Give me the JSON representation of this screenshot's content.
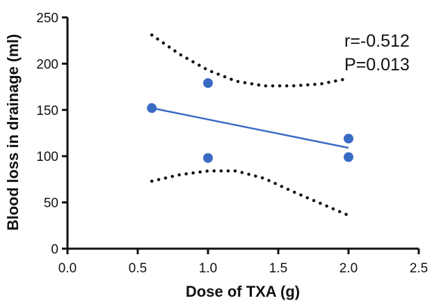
{
  "chart_data": {
    "type": "scatter",
    "title": "",
    "xlabel": "Dose of TXA (g)",
    "ylabel": "Blood loss in drainage (ml)",
    "xlim": [
      0.0,
      2.5
    ],
    "ylim": [
      0,
      250
    ],
    "xticks": [
      "0.0",
      "0.5",
      "1.0",
      "1.5",
      "2.0",
      "2.5"
    ],
    "yticks": [
      "0",
      "50",
      "100",
      "150",
      "200",
      "250"
    ],
    "grid": false,
    "legend": "none",
    "points": [
      {
        "x": 0.6,
        "y": 152
      },
      {
        "x": 1.0,
        "y": 179
      },
      {
        "x": 1.0,
        "y": 98
      },
      {
        "x": 2.0,
        "y": 119
      },
      {
        "x": 2.0,
        "y": 99
      }
    ],
    "regression_line": {
      "x": [
        0.6,
        2.0
      ],
      "y": [
        152,
        109
      ]
    },
    "confidence_band_upper": {
      "x": [
        0.6,
        0.8,
        1.0,
        1.2,
        1.4,
        1.6,
        1.8,
        2.0
      ],
      "y": [
        231,
        210,
        193,
        181,
        176,
        176,
        178,
        184
      ]
    },
    "confidence_band_lower": {
      "x": [
        0.6,
        0.8,
        1.0,
        1.2,
        1.4,
        1.6,
        1.8,
        2.0
      ],
      "y": [
        73,
        80,
        84,
        84,
        76,
        62,
        49,
        36
      ]
    },
    "annotations": [
      "r=-0.512",
      "P=0.013"
    ],
    "colors": {
      "points": "#3a6bc4",
      "line": "#3a6bc4",
      "band": "#111111",
      "axis": "#111111"
    }
  }
}
